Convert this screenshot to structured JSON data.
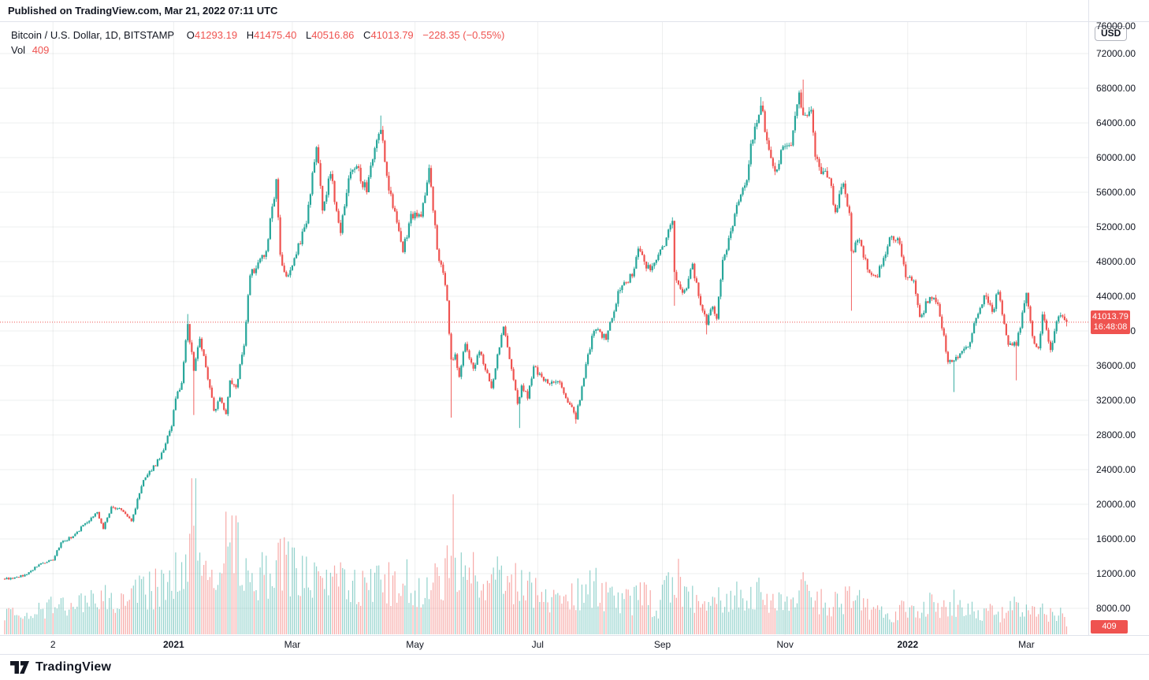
{
  "published_bar": {
    "text": "Published on TradingView.com, Mar 21, 2022 07:11 UTC"
  },
  "legend": {
    "pair": "Bitcoin / U.S. Dollar, 1D, BITSTAMP",
    "o_label": "O",
    "o_value": "41293.19",
    "h_label": "H",
    "h_value": "41475.40",
    "l_label": "L",
    "l_value": "40516.86",
    "c_label": "C",
    "c_value": "41013.79",
    "change": "−228.35 (−0.55%)",
    "vol_label": "Vol",
    "vol_value": "409"
  },
  "price_axis": {
    "currency_badge": "USD",
    "last_price": "41013.79",
    "countdown": "16:48:08",
    "volume_badge": "409"
  },
  "footer": {
    "brand": "TradingView"
  },
  "colors": {
    "up": "#26a69a",
    "down": "#ef5350",
    "vol_up": "rgba(38,166,154,0.5)",
    "vol_down": "rgba(239,83,80,0.5)",
    "accent_red": "#ef5350",
    "text": "#131722",
    "grid": "rgba(42,46,57,0.08)",
    "border": "#e0e3eb"
  },
  "chart_data": {
    "type": "candlestick",
    "symbol": "Bitcoin / U.S. Dollar",
    "exchange": "BITSTAMP",
    "interval": "1D",
    "last": {
      "open": 41293.19,
      "high": 41475.4,
      "low": 40516.86,
      "close": 41013.79,
      "change": -228.35,
      "change_pct": -0.55,
      "volume": 409
    },
    "price_line": 41013.79,
    "y_axis": {
      "min": 8000,
      "max": 76000,
      "step": 4000,
      "unit": "USD",
      "format": "0.00"
    },
    "x_axis_ticks": [
      {
        "label": "2",
        "day": 24,
        "bold": false
      },
      {
        "label": "2021",
        "day": 84,
        "bold": true
      },
      {
        "label": "Mar",
        "day": 143,
        "bold": false
      },
      {
        "label": "May",
        "day": 204,
        "bold": false
      },
      {
        "label": "Jul",
        "day": 265,
        "bold": false
      },
      {
        "label": "Sep",
        "day": 327,
        "bold": false
      },
      {
        "label": "Nov",
        "day": 388,
        "bold": false
      },
      {
        "label": "2022",
        "day": 449,
        "bold": true
      },
      {
        "label": "Mar",
        "day": 508,
        "bold": false
      }
    ],
    "days_total": 529,
    "close_anchors": [
      [
        4,
        11430
      ],
      [
        11,
        11920
      ],
      [
        17,
        13050
      ],
      [
        24,
        13550
      ],
      [
        28,
        15600
      ],
      [
        34,
        16320
      ],
      [
        40,
        17800
      ],
      [
        46,
        19100
      ],
      [
        49,
        17150
      ],
      [
        53,
        19700
      ],
      [
        58,
        19350
      ],
      [
        63,
        18050
      ],
      [
        69,
        22800
      ],
      [
        73,
        23850
      ],
      [
        79,
        26250
      ],
      [
        83,
        29000
      ],
      [
        85,
        32200
      ],
      [
        88,
        34000
      ],
      [
        91,
        40800
      ],
      [
        94,
        35400
      ],
      [
        97,
        39100
      ],
      [
        100,
        35800
      ],
      [
        104,
        30800
      ],
      [
        107,
        32300
      ],
      [
        110,
        30400
      ],
      [
        112,
        34300
      ],
      [
        115,
        33500
      ],
      [
        119,
        38300
      ],
      [
        122,
        46400
      ],
      [
        126,
        47900
      ],
      [
        130,
        49200
      ],
      [
        135,
        57500
      ],
      [
        137,
        48800
      ],
      [
        140,
        46300
      ],
      [
        144,
        48400
      ],
      [
        150,
        52400
      ],
      [
        155,
        61200
      ],
      [
        158,
        53900
      ],
      [
        162,
        58100
      ],
      [
        167,
        51300
      ],
      [
        171,
        57600
      ],
      [
        175,
        59000
      ],
      [
        180,
        56000
      ],
      [
        183,
        59800
      ],
      [
        187,
        63200
      ],
      [
        191,
        56200
      ],
      [
        194,
        53800
      ],
      [
        198,
        49100
      ],
      [
        202,
        53500
      ],
      [
        207,
        53200
      ],
      [
        211,
        58800
      ],
      [
        215,
        49400
      ],
      [
        218,
        46700
      ],
      [
        220,
        43500
      ],
      [
        222,
        36700
      ],
      [
        224,
        37300
      ],
      [
        226,
        34700
      ],
      [
        229,
        38500
      ],
      [
        233,
        35650
      ],
      [
        236,
        37600
      ],
      [
        239,
        35500
      ],
      [
        242,
        33400
      ],
      [
        245,
        37300
      ],
      [
        248,
        40500
      ],
      [
        252,
        35600
      ],
      [
        255,
        31600
      ],
      [
        257,
        33700
      ],
      [
        260,
        32200
      ],
      [
        263,
        35900
      ],
      [
        267,
        34700
      ],
      [
        271,
        33900
      ],
      [
        275,
        34200
      ],
      [
        278,
        32800
      ],
      [
        281,
        31500
      ],
      [
        284,
        29800
      ],
      [
        287,
        33600
      ],
      [
        290,
        37300
      ],
      [
        293,
        40000
      ],
      [
        296,
        39900
      ],
      [
        299,
        39000
      ],
      [
        302,
        41500
      ],
      [
        305,
        44600
      ],
      [
        309,
        45600
      ],
      [
        312,
        46300
      ],
      [
        315,
        49500
      ],
      [
        318,
        48000
      ],
      [
        321,
        47000
      ],
      [
        325,
        48800
      ],
      [
        328,
        49800
      ],
      [
        332,
        52700
      ],
      [
        333,
        46800
      ],
      [
        336,
        44850
      ],
      [
        339,
        44900
      ],
      [
        342,
        47750
      ],
      [
        346,
        43000
      ],
      [
        349,
        40700
      ],
      [
        352,
        42800
      ],
      [
        354,
        41400
      ],
      [
        357,
        48200
      ],
      [
        361,
        51500
      ],
      [
        365,
        54950
      ],
      [
        369,
        57400
      ],
      [
        371,
        61600
      ],
      [
        376,
        66000
      ],
      [
        380,
        60900
      ],
      [
        383,
        58400
      ],
      [
        387,
        61300
      ],
      [
        391,
        61400
      ],
      [
        395,
        67500
      ],
      [
        397,
        64900
      ],
      [
        401,
        65500
      ],
      [
        403,
        60100
      ],
      [
        406,
        58100
      ],
      [
        410,
        57600
      ],
      [
        413,
        53700
      ],
      [
        417,
        57000
      ],
      [
        420,
        53600
      ],
      [
        421,
        49200
      ],
      [
        425,
        50500
      ],
      [
        430,
        46700
      ],
      [
        434,
        46200
      ],
      [
        440,
        50800
      ],
      [
        444,
        50700
      ],
      [
        448,
        46200
      ],
      [
        452,
        45800
      ],
      [
        455,
        41600
      ],
      [
        460,
        43900
      ],
      [
        464,
        43100
      ],
      [
        469,
        36400
      ],
      [
        472,
        36600
      ],
      [
        476,
        37700
      ],
      [
        480,
        38700
      ],
      [
        483,
        41500
      ],
      [
        487,
        44100
      ],
      [
        491,
        42200
      ],
      [
        494,
        44500
      ],
      [
        499,
        38400
      ],
      [
        503,
        38300
      ],
      [
        507,
        43200
      ],
      [
        508,
        44400
      ],
      [
        511,
        39400
      ],
      [
        514,
        38000
      ],
      [
        516,
        41900
      ],
      [
        520,
        37800
      ],
      [
        523,
        41100
      ],
      [
        525,
        41800
      ],
      [
        527,
        41262
      ],
      [
        528,
        41013.79
      ]
    ],
    "extremes": [
      [
        91,
        "hi",
        41950
      ],
      [
        94,
        "lo",
        30300
      ],
      [
        187,
        "hi",
        64850
      ],
      [
        222,
        "lo",
        30000
      ],
      [
        256,
        "lo",
        28800
      ],
      [
        284,
        "lo",
        29300
      ],
      [
        333,
        "lo",
        42900
      ],
      [
        349,
        "lo",
        39600
      ],
      [
        376,
        "hi",
        66990
      ],
      [
        397,
        "hi",
        69000
      ],
      [
        421,
        "lo",
        42333
      ],
      [
        472,
        "lo",
        32950
      ],
      [
        503,
        "lo",
        34300
      ]
    ],
    "volume_anchors_relative": [
      [
        0,
        0.12
      ],
      [
        10,
        0.16
      ],
      [
        24,
        0.18
      ],
      [
        40,
        0.22
      ],
      [
        46,
        0.28
      ],
      [
        56,
        0.22
      ],
      [
        69,
        0.3
      ],
      [
        80,
        0.34
      ],
      [
        85,
        0.45
      ],
      [
        91,
        0.55
      ],
      [
        94,
        1.0
      ],
      [
        97,
        0.52
      ],
      [
        104,
        0.46
      ],
      [
        112,
        0.72
      ],
      [
        119,
        0.42
      ],
      [
        126,
        0.4
      ],
      [
        130,
        0.45
      ],
      [
        135,
        0.48
      ],
      [
        137,
        0.56
      ],
      [
        141,
        0.45
      ],
      [
        150,
        0.38
      ],
      [
        155,
        0.5
      ],
      [
        158,
        0.42
      ],
      [
        167,
        0.36
      ],
      [
        175,
        0.32
      ],
      [
        183,
        0.34
      ],
      [
        187,
        0.4
      ],
      [
        194,
        0.34
      ],
      [
        198,
        0.38
      ],
      [
        207,
        0.28
      ],
      [
        211,
        0.32
      ],
      [
        215,
        0.38
      ],
      [
        218,
        0.42
      ],
      [
        222,
        0.82
      ],
      [
        224,
        0.56
      ],
      [
        226,
        0.48
      ],
      [
        233,
        0.4
      ],
      [
        239,
        0.34
      ],
      [
        245,
        0.38
      ],
      [
        252,
        0.36
      ],
      [
        256,
        0.34
      ],
      [
        263,
        0.28
      ],
      [
        271,
        0.24
      ],
      [
        278,
        0.26
      ],
      [
        284,
        0.28
      ],
      [
        287,
        0.32
      ],
      [
        293,
        0.34
      ],
      [
        299,
        0.26
      ],
      [
        305,
        0.24
      ],
      [
        312,
        0.22
      ],
      [
        318,
        0.26
      ],
      [
        325,
        0.18
      ],
      [
        332,
        0.4
      ],
      [
        333,
        0.44
      ],
      [
        339,
        0.26
      ],
      [
        346,
        0.22
      ],
      [
        354,
        0.24
      ],
      [
        361,
        0.26
      ],
      [
        371,
        0.28
      ],
      [
        376,
        0.3
      ],
      [
        383,
        0.22
      ],
      [
        391,
        0.26
      ],
      [
        397,
        0.3
      ],
      [
        403,
        0.26
      ],
      [
        410,
        0.2
      ],
      [
        417,
        0.22
      ],
      [
        421,
        0.3
      ],
      [
        430,
        0.18
      ],
      [
        440,
        0.14
      ],
      [
        448,
        0.17
      ],
      [
        455,
        0.2
      ],
      [
        465,
        0.2
      ],
      [
        469,
        0.22
      ],
      [
        472,
        0.22
      ],
      [
        480,
        0.18
      ],
      [
        487,
        0.16
      ],
      [
        494,
        0.14
      ],
      [
        499,
        0.18
      ],
      [
        503,
        0.2
      ],
      [
        508,
        0.18
      ],
      [
        512,
        0.16
      ],
      [
        518,
        0.16
      ],
      [
        524,
        0.15
      ],
      [
        528,
        0.07
      ]
    ]
  }
}
